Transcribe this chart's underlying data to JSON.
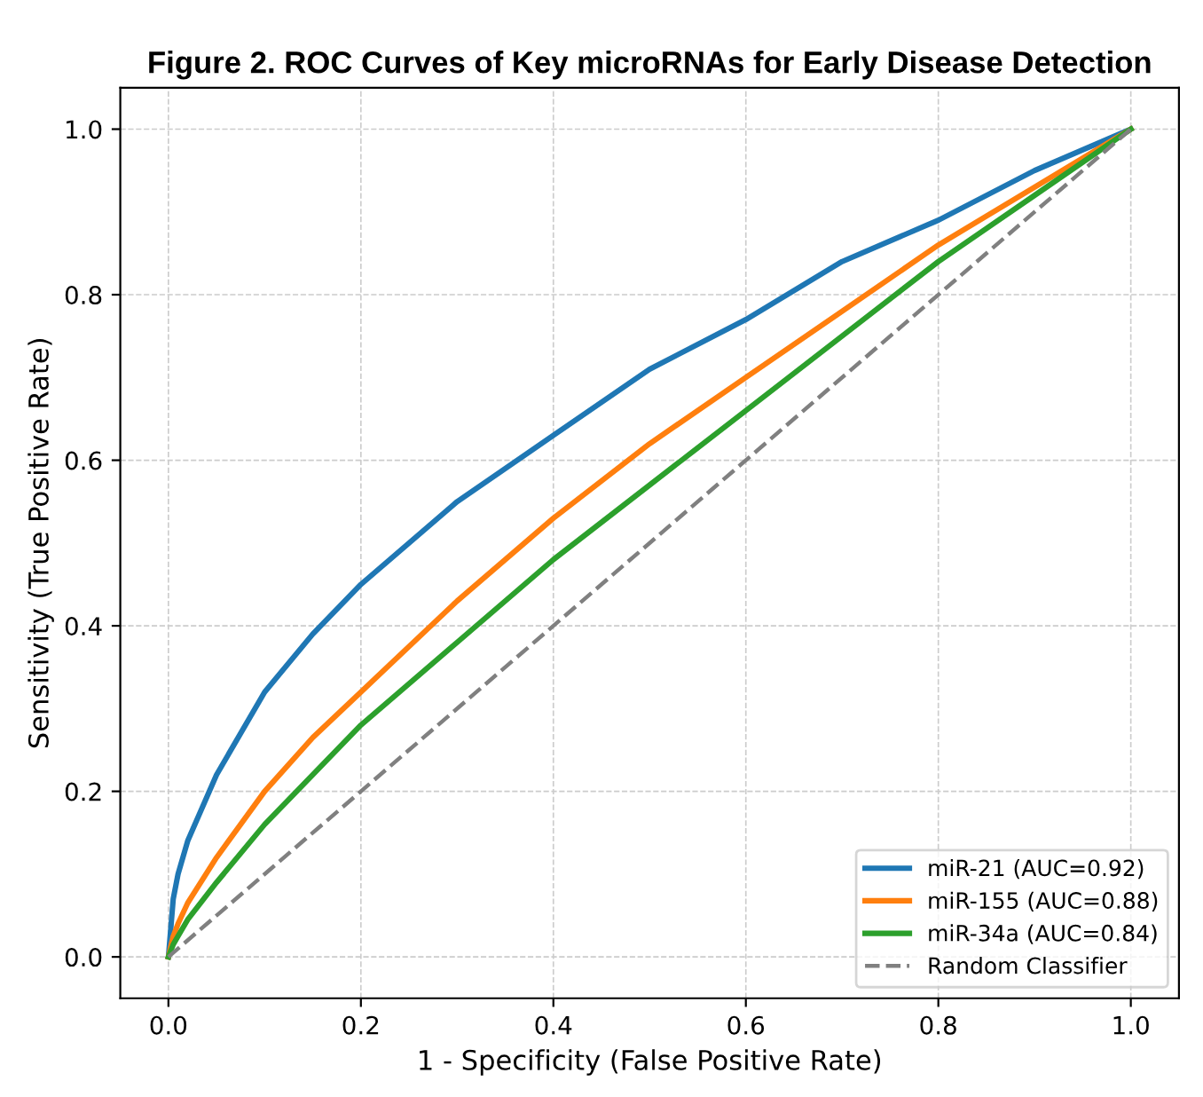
{
  "chart_data": {
    "type": "line",
    "title": "Figure 2. ROC Curves of Key microRNAs for Early Disease Detection",
    "xlabel": "1 - Specificity (False Positive Rate)",
    "ylabel": "Sensitivity (True Positive Rate)",
    "series": [
      {
        "name": "miR-21 (AUC=0.92)",
        "color": "#1f77b4",
        "x": [
          0,
          0.005,
          0.01,
          0.02,
          0.05,
          0.1,
          0.15,
          0.2,
          0.3,
          0.4,
          0.5,
          0.6,
          0.7,
          0.8,
          0.9,
          1.0
        ],
        "values": [
          0,
          0.07,
          0.1,
          0.14,
          0.22,
          0.32,
          0.39,
          0.45,
          0.55,
          0.63,
          0.71,
          0.77,
          0.84,
          0.89,
          0.95,
          1.0
        ]
      },
      {
        "name": "miR-155 (AUC=0.88)",
        "color": "#ff7f0e",
        "x": [
          0,
          0.005,
          0.01,
          0.02,
          0.05,
          0.1,
          0.15,
          0.2,
          0.3,
          0.4,
          0.5,
          0.6,
          0.7,
          0.8,
          0.9,
          1.0
        ],
        "values": [
          0,
          0.025,
          0.04,
          0.065,
          0.12,
          0.2,
          0.265,
          0.32,
          0.43,
          0.53,
          0.62,
          0.7,
          0.78,
          0.86,
          0.93,
          1.0
        ]
      },
      {
        "name": "miR-34a (AUC=0.84)",
        "color": "#2ca02c",
        "x": [
          0,
          0.005,
          0.01,
          0.02,
          0.05,
          0.1,
          0.15,
          0.2,
          0.3,
          0.4,
          0.5,
          0.6,
          0.7,
          0.8,
          0.9,
          1.0
        ],
        "values": [
          0,
          0.015,
          0.025,
          0.045,
          0.09,
          0.16,
          0.22,
          0.28,
          0.38,
          0.48,
          0.57,
          0.66,
          0.75,
          0.84,
          0.92,
          1.0
        ]
      },
      {
        "name": "Random Classifier",
        "color": "#808080",
        "line_style": "dashed",
        "x": [
          0,
          1
        ],
        "values": [
          0,
          1
        ]
      }
    ],
    "xlim": [
      -0.05,
      1.05
    ],
    "ylim": [
      -0.05,
      1.05
    ],
    "xticks": [
      {
        "value": 0,
        "label": "0.0"
      },
      0.2,
      0.4,
      0.6,
      0.8,
      {
        "value": 1,
        "label": "1.0"
      }
    ],
    "yticks": [
      {
        "value": 0,
        "label": "0.0"
      },
      0.2,
      0.4,
      0.6,
      0.8,
      {
        "value": 1,
        "label": "1.0"
      }
    ],
    "grid": true,
    "legend": "bottom right",
    "line_style": "solid",
    "marker": "none"
  }
}
